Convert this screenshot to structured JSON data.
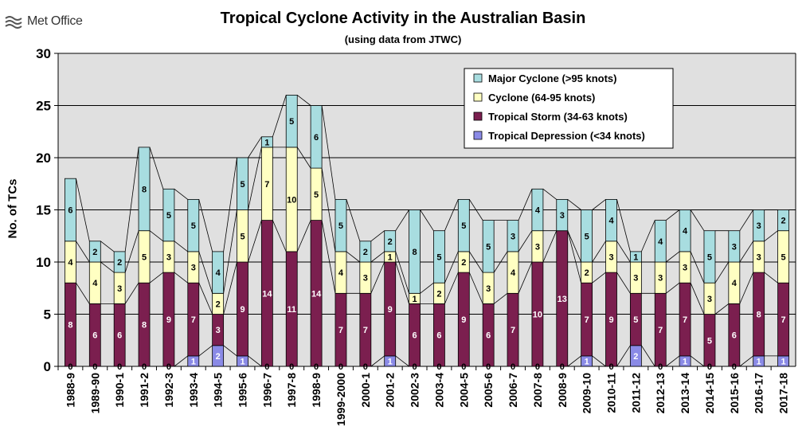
{
  "logo": {
    "text": "Met Office",
    "icon": "met-office-logo-icon"
  },
  "chart_data": {
    "type": "bar",
    "stacked": true,
    "title": "Tropical Cyclone Activity in the Australian Basin",
    "subtitle": "(using data from JTWC)",
    "ylabel": "No. of TCs",
    "xlabel": "",
    "ylim": [
      0,
      30
    ],
    "yticks": [
      0,
      5,
      10,
      15,
      20,
      25,
      30
    ],
    "grid": true,
    "legend_position": "top-right",
    "categories": [
      "1988-9",
      "1989-90",
      "1990-1",
      "1991-2",
      "1992-3",
      "1993-4",
      "1994-5",
      "1995-6",
      "1996-7",
      "1997-8",
      "1998-9",
      "1999-2000",
      "2000-1",
      "2001-2",
      "2002-3",
      "2003-4",
      "2004-5",
      "2005-6",
      "2006-7",
      "2007-8",
      "2008-9",
      "2009-10",
      "2010-11",
      "2011-12",
      "2012-13",
      "2013-14",
      "2014-15",
      "2015-16",
      "2016-17",
      "2017-18"
    ],
    "series": [
      {
        "name": "Tropical Depression (<34 knots)",
        "color": "#8a8ae6",
        "values": [
          0,
          0,
          0,
          0,
          0,
          1,
          2,
          1,
          0,
          0,
          0,
          0,
          0,
          1,
          0,
          0,
          0,
          0,
          0,
          0,
          0,
          1,
          0,
          2,
          0,
          1,
          0,
          0,
          1,
          1
        ]
      },
      {
        "name": "Tropical Storm (34-63 knots)",
        "color": "#7b1f4f",
        "values": [
          8,
          6,
          6,
          8,
          9,
          7,
          3,
          9,
          14,
          11,
          14,
          7,
          7,
          9,
          6,
          6,
          9,
          6,
          7,
          10,
          13,
          7,
          9,
          5,
          7,
          7,
          5,
          6,
          8,
          7
        ]
      },
      {
        "name": "Cyclone (64-95 knots)",
        "color": "#ffffc2",
        "values": [
          4,
          4,
          3,
          5,
          3,
          3,
          2,
          5,
          7,
          10,
          5,
          4,
          3,
          1,
          1,
          2,
          2,
          3,
          4,
          3,
          0,
          2,
          3,
          3,
          3,
          3,
          3,
          4,
          3,
          5
        ]
      },
      {
        "name": "Major Cyclone (>95 knots)",
        "color": "#a8dde0",
        "values": [
          6,
          2,
          2,
          8,
          5,
          5,
          4,
          5,
          1,
          5,
          6,
          5,
          2,
          2,
          8,
          5,
          5,
          5,
          3,
          4,
          3,
          5,
          4,
          1,
          4,
          4,
          5,
          3,
          3,
          2
        ]
      }
    ],
    "legend_order": [
      "Major Cyclone (>95 knots)",
      "Cyclone (64-95 knots)",
      "Tropical Storm (34-63 knots)",
      "Tropical Depression (<34 knots)"
    ]
  }
}
